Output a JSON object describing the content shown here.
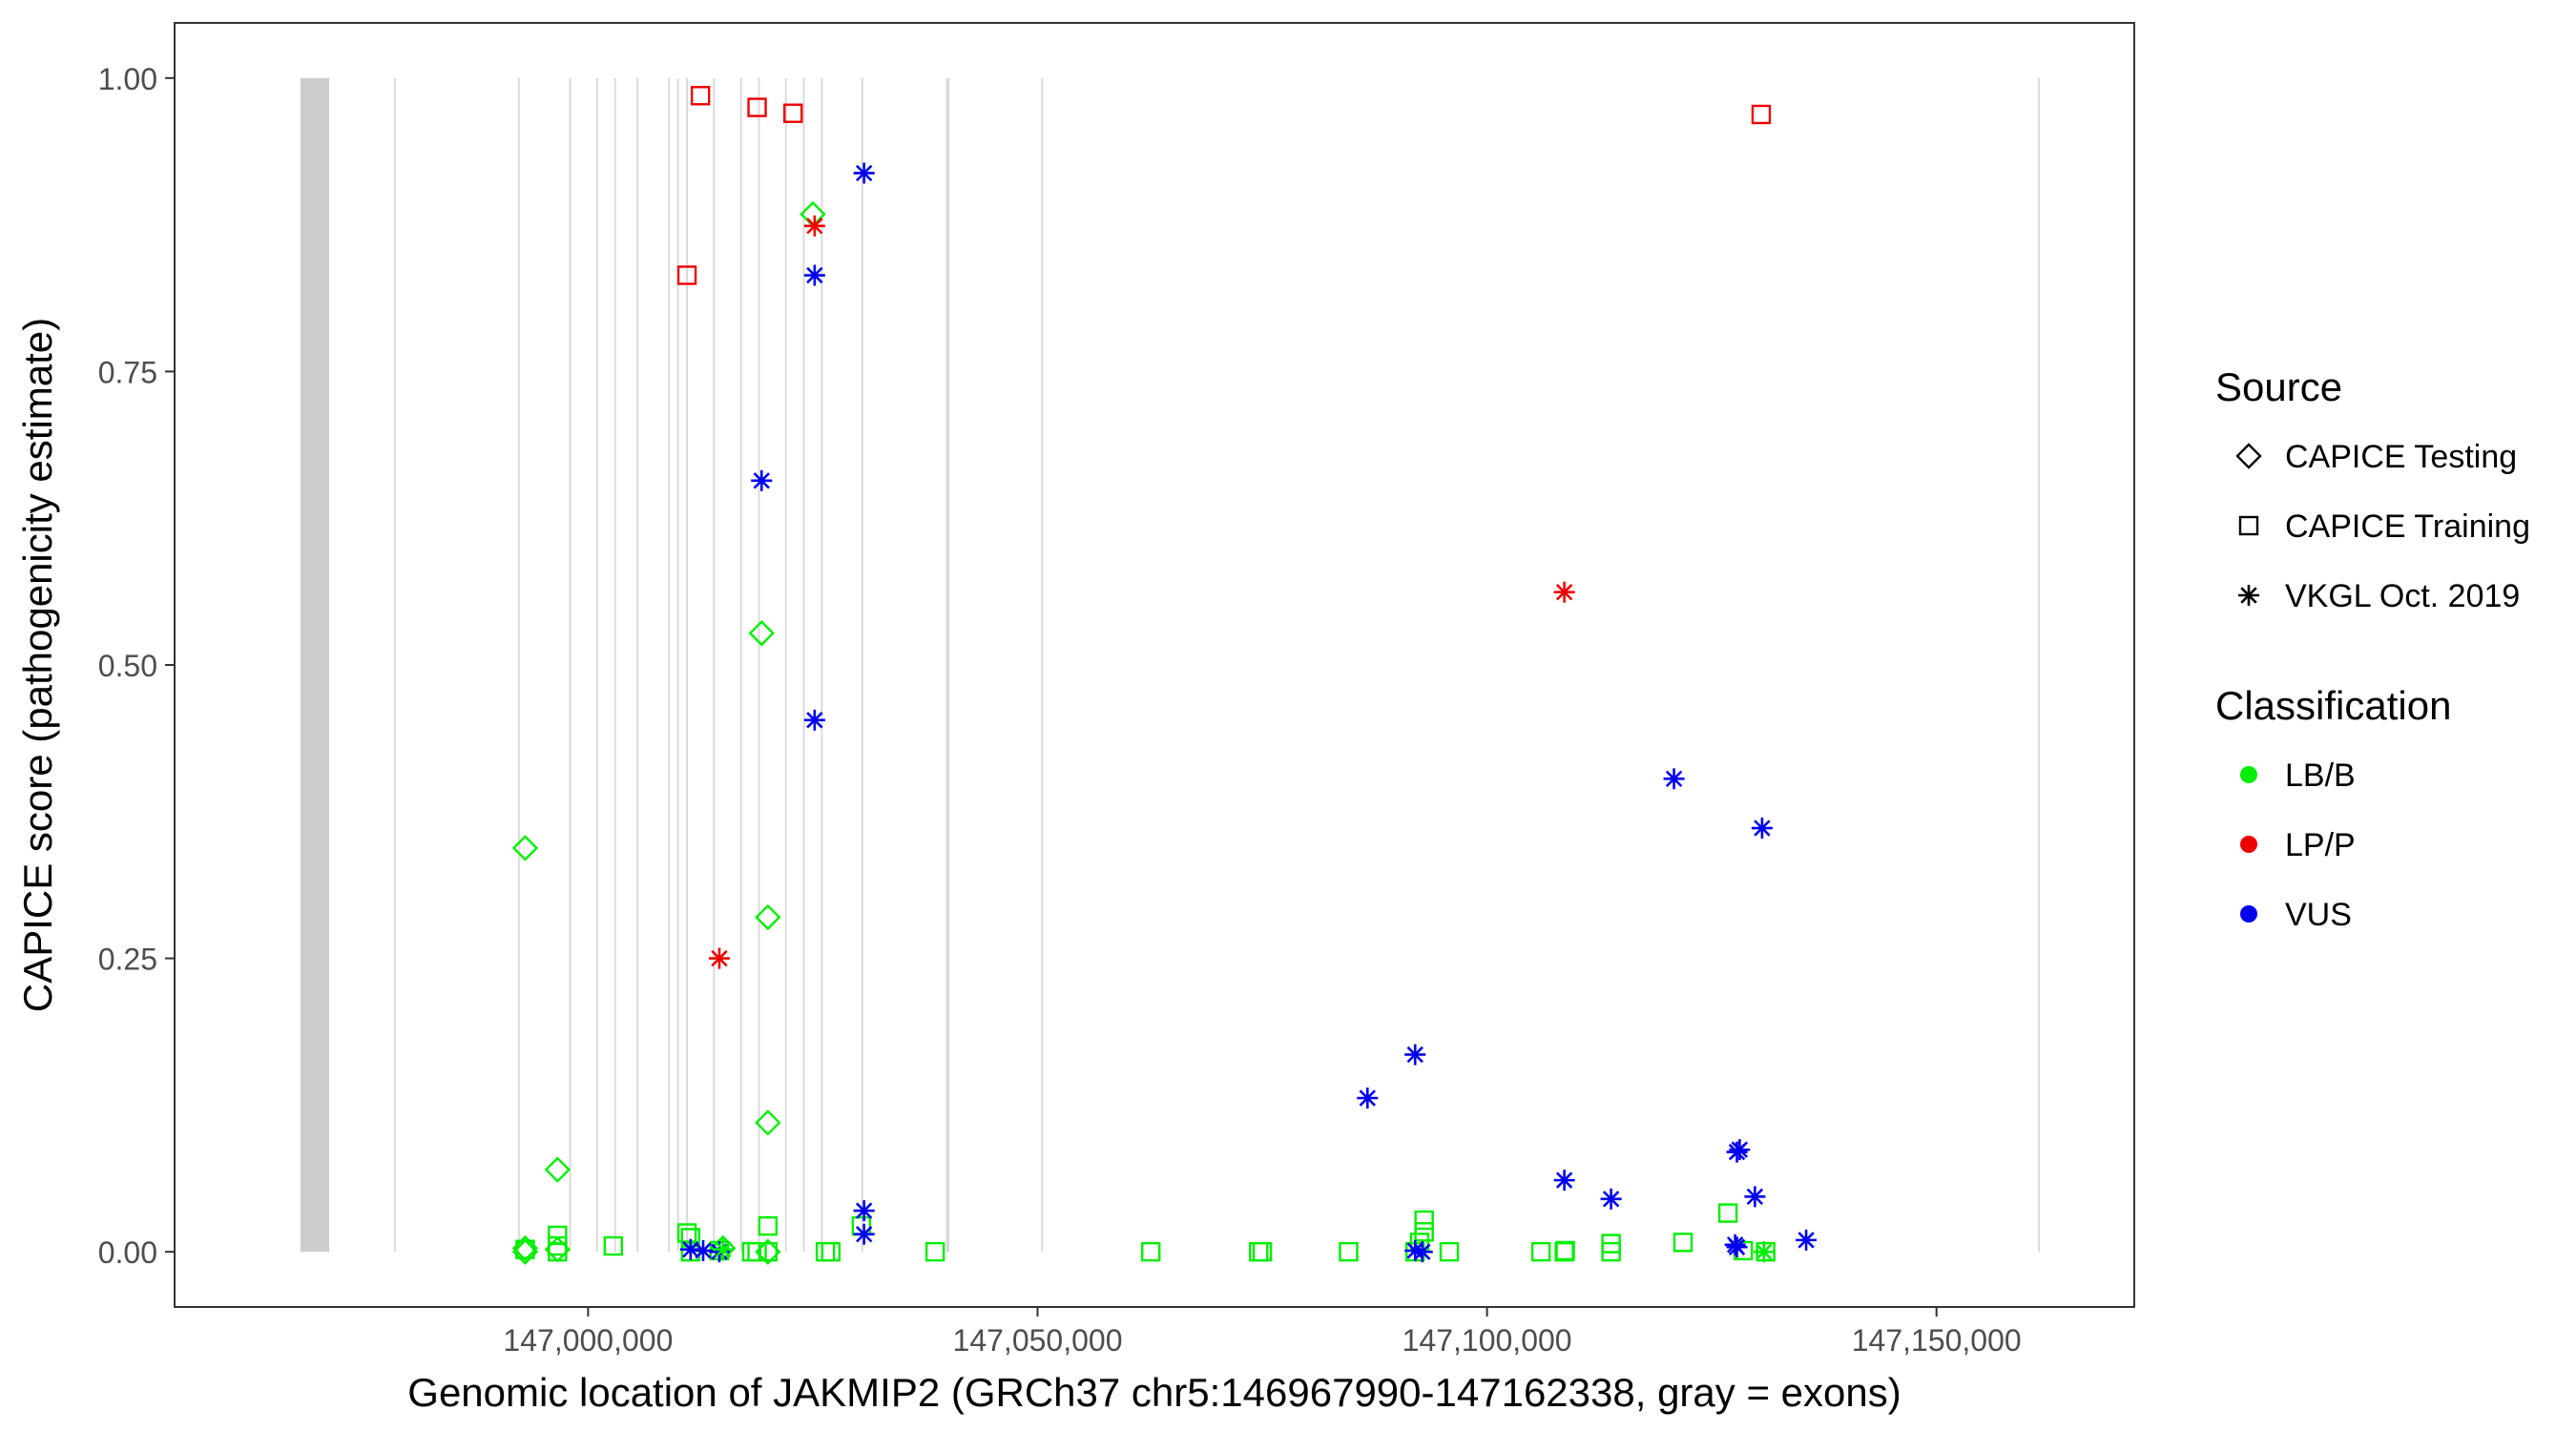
{
  "chart_data": {
    "type": "scatter",
    "title": "",
    "xlabel": "Genomic location of JAKMIP2 (GRCh37 chr5:146967990-147162338, gray = exons)",
    "ylabel": "CAPICE score (pathogenicity estimate)",
    "xlim": [
      146954000,
      147172000
    ],
    "ylim": [
      -0.047,
      1.047
    ],
    "x_ticks": [
      147000000,
      147050000,
      147100000,
      147150000
    ],
    "x_tick_labels": [
      "147,000,000",
      "147,050,000",
      "147,100,000",
      "147,150,000"
    ],
    "y_ticks": [
      0,
      0.25,
      0.5,
      0.75,
      1.0
    ],
    "y_tick_labels": [
      "0.00",
      "0.25",
      "0.50",
      "0.75",
      "1.00"
    ],
    "grid": false,
    "legend_position": "right",
    "exons": [
      [
        146968000,
        146971200
      ],
      [
        146978400,
        146978600
      ],
      [
        146992200,
        146992400
      ],
      [
        146997900,
        146998100
      ],
      [
        147000900,
        147001100
      ],
      [
        147002900,
        147003100
      ],
      [
        147005400,
        147005600
      ],
      [
        147008900,
        147009100
      ],
      [
        147009900,
        147010100
      ],
      [
        147010900,
        147011100
      ],
      [
        147013900,
        147014100
      ],
      [
        147016900,
        147017100
      ],
      [
        147018900,
        147019100
      ],
      [
        147021900,
        147022100
      ],
      [
        147023900,
        147024100
      ],
      [
        147025900,
        147026100
      ],
      [
        147030400,
        147030600
      ],
      [
        147039800,
        147040200
      ],
      [
        147050400,
        147050600
      ],
      [
        147161300,
        147161500
      ]
    ],
    "legends": [
      {
        "title": "Source",
        "items": [
          {
            "label": "CAPICE Testing",
            "shape": "diamond"
          },
          {
            "label": "CAPICE Training",
            "shape": "square"
          },
          {
            "label": "VKGL Oct. 2019",
            "shape": "asterisk"
          }
        ]
      },
      {
        "title": "Classification",
        "items": [
          {
            "label": "LB/B",
            "color": "#00ee00"
          },
          {
            "label": "LP/P",
            "color": "#ee0000"
          },
          {
            "label": "VUS",
            "color": "#0000ee"
          }
        ]
      }
    ],
    "series": [
      {
        "source": "CAPICE Testing",
        "classification": "LB/B",
        "shape": "diamond",
        "color": "#00ee00",
        "points": [
          [
            146993000,
            0.344
          ],
          [
            146996600,
            0.07
          ],
          [
            147019300,
            0.527
          ],
          [
            147020000,
            0.285
          ],
          [
            147020000,
            0.11
          ],
          [
            147025000,
            0.884
          ],
          [
            146993000,
            0.003
          ],
          [
            146993000,
            0.0
          ],
          [
            146996600,
            0.002
          ],
          [
            147015000,
            0.003
          ],
          [
            147020000,
            0.0
          ]
        ]
      },
      {
        "source": "CAPICE Training",
        "classification": "LP/P",
        "shape": "square",
        "color": "#ee0000",
        "points": [
          [
            147012500,
            0.985
          ],
          [
            147018800,
            0.975
          ],
          [
            147022800,
            0.97
          ],
          [
            147011000,
            0.832
          ],
          [
            147130500,
            0.969
          ]
        ]
      },
      {
        "source": "CAPICE Training",
        "classification": "LB/B",
        "shape": "square",
        "color": "#00ee00",
        "points": [
          [
            146993000,
            0.002
          ],
          [
            146996600,
            0.014
          ],
          [
            146996600,
            0.005
          ],
          [
            146996600,
            0.0
          ],
          [
            147002800,
            0.005
          ],
          [
            147011000,
            0.016
          ],
          [
            147011400,
            0.012
          ],
          [
            147011400,
            0.0
          ],
          [
            147014600,
            0.001
          ],
          [
            147018200,
            0.0
          ],
          [
            147018800,
            0.0
          ],
          [
            147020000,
            0.022
          ],
          [
            147020000,
            0.0
          ],
          [
            147026400,
            0.0
          ],
          [
            147027000,
            0.0
          ],
          [
            147030400,
            0.022
          ],
          [
            147038600,
            0.0
          ],
          [
            147062600,
            0.0
          ],
          [
            147074600,
            0.0
          ],
          [
            147075000,
            0.0
          ],
          [
            147084600,
            0.0
          ],
          [
            147092000,
            0.0
          ],
          [
            147093000,
            0.027
          ],
          [
            147093000,
            0.017
          ],
          [
            147092500,
            0.008
          ],
          [
            147095800,
            0.0
          ],
          [
            147106000,
            0.0
          ],
          [
            147108600,
            0.0
          ],
          [
            147108700,
            0.001
          ],
          [
            147113800,
            0.007
          ],
          [
            147113800,
            0.0
          ],
          [
            147121800,
            0.008
          ],
          [
            147126800,
            0.033
          ],
          [
            147131000,
            0.0
          ],
          [
            147128500,
            0.001
          ]
        ]
      },
      {
        "source": "VKGL Oct. 2019",
        "classification": "LP/P",
        "shape": "asterisk",
        "color": "#ee0000",
        "points": [
          [
            147025200,
            0.874
          ],
          [
            147014600,
            0.25
          ],
          [
            147108600,
            0.562
          ]
        ]
      },
      {
        "source": "VKGL Oct. 2019",
        "classification": "VUS",
        "shape": "asterisk",
        "color": "#0000ee",
        "points": [
          [
            147030700,
            0.919
          ],
          [
            147025200,
            0.832
          ],
          [
            147019300,
            0.657
          ],
          [
            147025200,
            0.453
          ],
          [
            147030700,
            0.035
          ],
          [
            147030700,
            0.015
          ],
          [
            147011400,
            0.002
          ],
          [
            147012800,
            0.001
          ],
          [
            147014600,
            0.0
          ],
          [
            147086700,
            0.131
          ],
          [
            147092000,
            0.168
          ],
          [
            147092000,
            0.001
          ],
          [
            147092800,
            0.0
          ],
          [
            147108600,
            0.061
          ],
          [
            147113800,
            0.045
          ],
          [
            147120800,
            0.403
          ],
          [
            147130600,
            0.361
          ],
          [
            147127800,
            0.085
          ],
          [
            147128100,
            0.087
          ],
          [
            147129800,
            0.047
          ],
          [
            147127600,
            0.006
          ],
          [
            147127800,
            0.004
          ],
          [
            147135500,
            0.01
          ]
        ]
      },
      {
        "source": "VKGL Oct. 2019",
        "classification": "LB/B",
        "shape": "asterisk",
        "color": "#00ee00",
        "points": [
          [
            147015000,
            0.002
          ],
          [
            147130800,
            0.0
          ]
        ]
      }
    ]
  }
}
